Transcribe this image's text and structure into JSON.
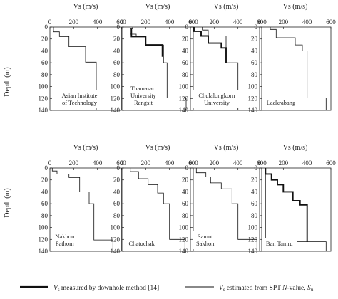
{
  "figure": {
    "xlabel": "Vs (m/s)",
    "ylabel": "Depth (m)",
    "xticks": [
      "0",
      "200",
      "400",
      "600"
    ],
    "yticks": [
      "0",
      "20",
      "40",
      "60",
      "80",
      "100",
      "120",
      "140"
    ],
    "legend": {
      "measured_prefix": "V",
      "measured_sub": "s",
      "measured_text": " measured by downhole method [14]",
      "estimated_prefix": "V",
      "estimated_sub": "s",
      "estimated_text": " estimated from SPT ",
      "estimated_italic": "N",
      "estimated_text2": "-value, ",
      "estimated_var": "S",
      "estimated_var_sub": "u"
    }
  },
  "chart_data": [
    {
      "type": "line",
      "site_lines": [
        "Asian Institute",
        "of Technology"
      ],
      "series": [
        {
          "style": "thin",
          "x": [
            30,
            30,
            80,
            80,
            160,
            160,
            300,
            300,
            390,
            390
          ],
          "y": [
            0,
            8,
            8,
            16,
            16,
            33,
            33,
            59,
            59,
            140
          ]
        }
      ],
      "xlim": [
        0,
        600
      ],
      "ylim": [
        140,
        0
      ],
      "grid": false
    },
    {
      "type": "line",
      "site_lines": [
        "Thamasart",
        "University",
        "Rangsit"
      ],
      "series": [
        {
          "style": "thin",
          "x": [
            90,
            90,
            70,
            70,
            120,
            120,
            200,
            200,
            350,
            350,
            380,
            380,
            540,
            540
          ],
          "y": [
            0,
            3,
            3,
            12,
            12,
            16,
            16,
            30,
            30,
            60,
            60,
            119,
            119,
            140
          ]
        },
        {
          "style": "thick",
          "x": [
            80,
            80,
            200,
            200,
            340,
            340
          ],
          "y": [
            3,
            16,
            16,
            30,
            30,
            50
          ]
        }
      ],
      "xlim": [
        0,
        600
      ],
      "ylim": [
        140,
        0
      ],
      "grid": false
    },
    {
      "type": "line",
      "site_lines": [
        "Chulalongkorn",
        "University"
      ],
      "series": [
        {
          "style": "thin",
          "x": [
            100,
            100,
            150,
            150,
            300,
            300,
            400,
            400
          ],
          "y": [
            0,
            5,
            5,
            15,
            15,
            60,
            60,
            140
          ]
        },
        {
          "style": "thick",
          "x": [
            30,
            30,
            90,
            90,
            150,
            150,
            260,
            260,
            300,
            300
          ],
          "y": [
            0,
            7,
            7,
            15,
            15,
            27,
            27,
            35,
            35,
            60
          ]
        }
      ],
      "xlim": [
        0,
        600
      ],
      "ylim": [
        140,
        0
      ],
      "grid": false
    },
    {
      "type": "line",
      "site_lines": [
        "Ladkrabang"
      ],
      "series": [
        {
          "style": "thin",
          "x": [
            90,
            90,
            140,
            140,
            300,
            300,
            360,
            360,
            400,
            400,
            560,
            560
          ],
          "y": [
            0,
            4,
            4,
            18,
            18,
            30,
            30,
            40,
            40,
            119,
            119,
            140
          ]
        }
      ],
      "xlim": [
        0,
        600
      ],
      "ylim": [
        140,
        0
      ],
      "grid": false
    },
    {
      "type": "line",
      "site_lines": [
        "Nakhon",
        "Pathom"
      ],
      "series": [
        {
          "style": "thin",
          "x": [
            20,
            20,
            60,
            60,
            160,
            160,
            250,
            250,
            330,
            330,
            370,
            370,
            530,
            530
          ],
          "y": [
            0,
            5,
            5,
            10,
            10,
            16,
            16,
            40,
            40,
            60,
            60,
            121,
            121,
            140
          ]
        }
      ],
      "xlim": [
        0,
        600
      ],
      "ylim": [
        140,
        0
      ],
      "grid": false
    },
    {
      "type": "line",
      "site_lines": [
        "Chatuchak"
      ],
      "series": [
        {
          "style": "thin",
          "x": [
            70,
            70,
            140,
            140,
            220,
            220,
            300,
            300,
            350,
            350,
            400,
            400,
            530,
            530
          ],
          "y": [
            0,
            6,
            6,
            18,
            18,
            28,
            28,
            42,
            42,
            60,
            60,
            120,
            120,
            140
          ]
        }
      ],
      "xlim": [
        0,
        600
      ],
      "ylim": [
        140,
        0
      ],
      "grid": false
    },
    {
      "type": "line",
      "site_lines": [
        "Samut",
        "Sakhon"
      ],
      "series": [
        {
          "style": "thin",
          "x": [
            50,
            50,
            130,
            130,
            170,
            170,
            260,
            260,
            350,
            350,
            400,
            400,
            560,
            560
          ],
          "y": [
            0,
            8,
            8,
            15,
            15,
            25,
            25,
            35,
            35,
            60,
            60,
            120,
            120,
            140
          ]
        }
      ],
      "xlim": [
        0,
        600
      ],
      "ylim": [
        140,
        0
      ],
      "grid": false
    },
    {
      "type": "line",
      "site_lines": [
        "Ban Tamru"
      ],
      "series": [
        {
          "style": "thin",
          "x": [
            50,
            50,
            560,
            560
          ],
          "y": [
            0,
            124,
            124,
            140
          ]
        },
        {
          "style": "thick",
          "x": [
            50,
            50,
            100,
            100,
            150,
            150,
            200,
            200,
            280,
            280,
            340,
            340,
            400,
            400
          ],
          "y": [
            0,
            10,
            10,
            20,
            20,
            28,
            28,
            40,
            40,
            55,
            55,
            62,
            62,
            124
          ]
        }
      ],
      "xlim": [
        0,
        600
      ],
      "ylim": [
        140,
        0
      ],
      "grid": false
    }
  ]
}
